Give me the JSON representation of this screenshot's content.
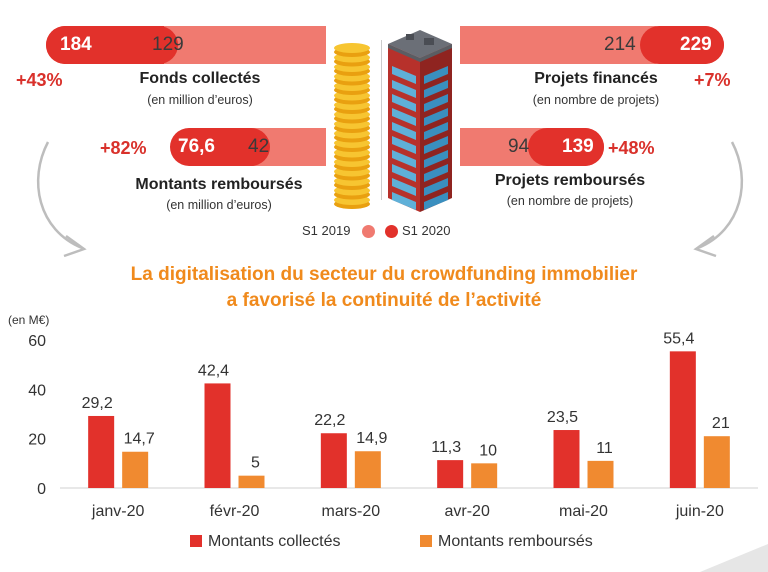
{
  "colors": {
    "s1_2019": "#f07a70",
    "s1_2020": "#e2312b",
    "collectes": "#e2312b",
    "rembourses": "#f08a30",
    "headline": "#f08a1c"
  },
  "stats": {
    "fonds": {
      "v2020": "184",
      "v2019": "129",
      "title": "Fonds collectés",
      "sub": "(en million d’euros)",
      "pct": "+43%"
    },
    "montants": {
      "v2020": "76,6",
      "v2019": "42",
      "title": "Montants remboursés",
      "sub": "(en million d’euros)",
      "pct": "+82%"
    },
    "projets_finances": {
      "v2020": "229",
      "v2019": "214",
      "title": "Projets financés",
      "sub": "(en nombre de projets)",
      "pct": "+7%"
    },
    "projets_rembourses": {
      "v2020": "139",
      "v2019": "94",
      "title": "Projets remboursés",
      "sub": "(en nombre de projets)",
      "pct": "+48%"
    }
  },
  "legend_top": {
    "s1_2019": "S1 2019",
    "s1_2020": "S1 2020"
  },
  "headline": {
    "line1": "La digitalisation du secteur du crowdfunding immobilier",
    "line2": "a favorisé la continuité de l’activité"
  },
  "chart_data": {
    "type": "bar",
    "unit_label": "(en M€)",
    "categories": [
      "janv-20",
      "févr-20",
      "mars-20",
      "avr-20",
      "mai-20",
      "juin-20"
    ],
    "series": [
      {
        "name": "Montants collectés",
        "values": [
          29.2,
          42.4,
          22.2,
          11.3,
          23.5,
          55.4
        ],
        "labels": [
          "29,2",
          "42,4",
          "22,2",
          "11,3",
          "23,5",
          "55,4"
        ],
        "color": "#e2312b"
      },
      {
        "name": "Montants remboursés",
        "values": [
          14.7,
          5,
          14.9,
          10,
          11,
          21
        ],
        "labels": [
          "14,7",
          "5",
          "14,9",
          "10",
          "11",
          "21"
        ],
        "color": "#f08a30"
      }
    ],
    "yticks": [
      "0",
      "20",
      "40",
      "60"
    ],
    "ylim": [
      0,
      60
    ],
    "legend": "bottom",
    "grid": false
  }
}
